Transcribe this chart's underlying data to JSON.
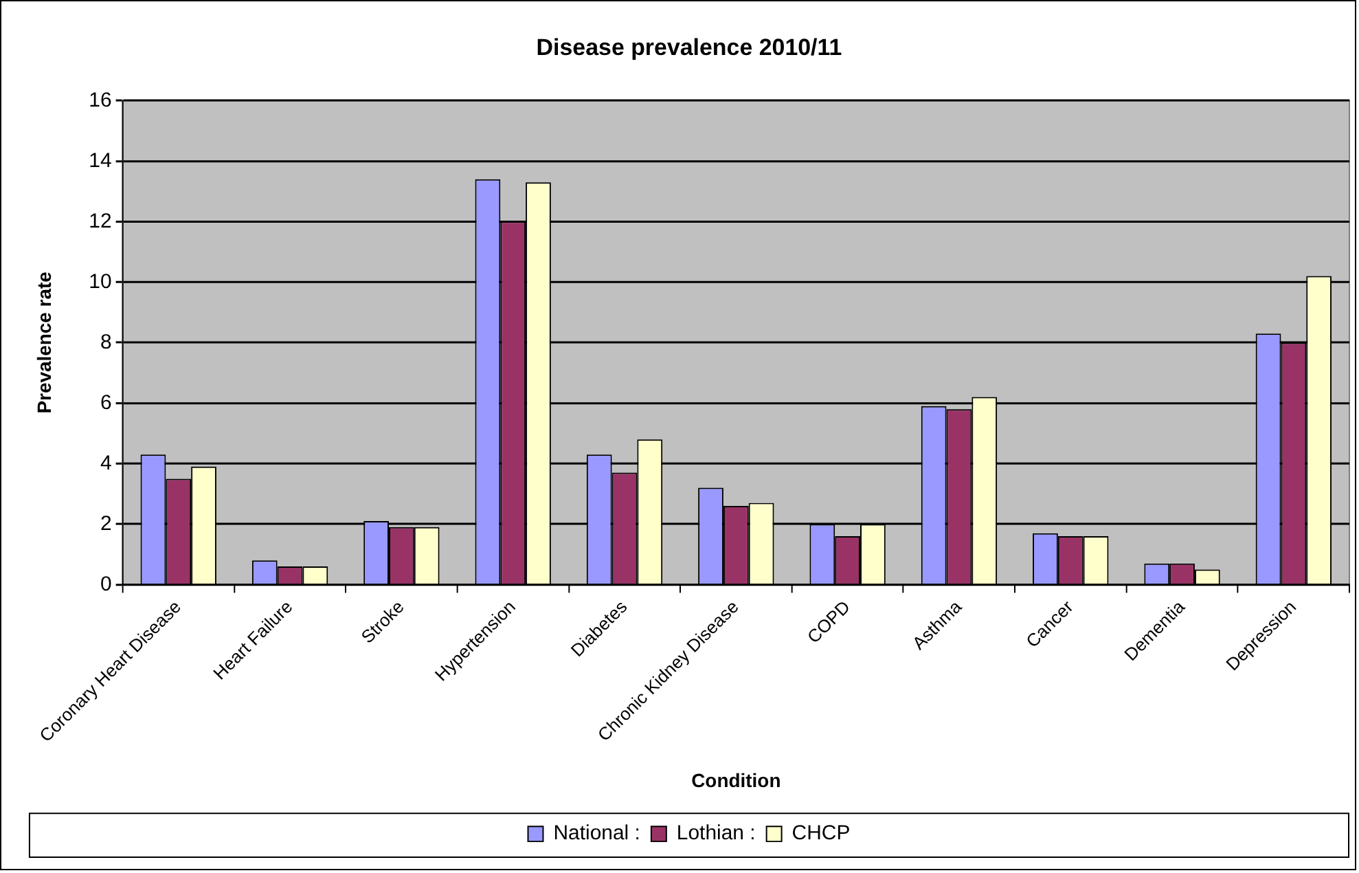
{
  "chart_data": {
    "type": "bar",
    "title": "Disease prevalence 2010/11",
    "xlabel": "Condition",
    "ylabel": "Prevalence rate",
    "categories": [
      "Coronary Heart Disease",
      "Heart Failure",
      "Stroke",
      "Hypertension",
      "Diabetes",
      "Chronic Kidney Disease",
      "COPD",
      "Asthma",
      "Cancer",
      "Dementia",
      "Depression"
    ],
    "series": [
      {
        "name": "National :",
        "color": "#9999ff",
        "values": [
          4.3,
          0.8,
          2.1,
          13.4,
          4.3,
          3.2,
          2.0,
          5.9,
          1.7,
          0.7,
          8.3
        ]
      },
      {
        "name": "Lothian :",
        "color": "#993366",
        "values": [
          3.5,
          0.6,
          1.9,
          12.0,
          3.7,
          2.6,
          1.6,
          5.8,
          1.6,
          0.7,
          8.0
        ]
      },
      {
        "name": "CHCP",
        "color": "#ffffcc",
        "values": [
          3.9,
          0.6,
          1.9,
          13.3,
          4.8,
          2.7,
          2.0,
          6.2,
          1.6,
          0.5,
          10.2
        ]
      }
    ],
    "ylim": [
      0,
      16
    ],
    "yticks": [
      0,
      2,
      4,
      6,
      8,
      10,
      12,
      14,
      16
    ],
    "grid": "y",
    "legend": "bottom"
  }
}
